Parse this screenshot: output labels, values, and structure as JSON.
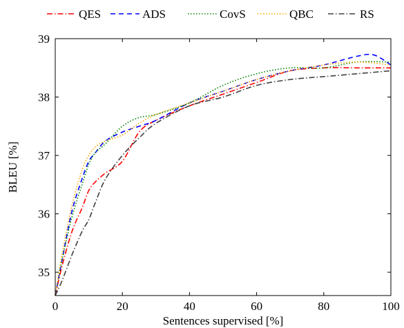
{
  "chart_data": {
    "type": "line",
    "xlabel": "Sentences supervised [%]",
    "ylabel": "BLEU [%]",
    "xlim": [
      0,
      100
    ],
    "ylim": [
      34.6,
      39.0
    ],
    "xticks": [
      0,
      20,
      40,
      60,
      80,
      100
    ],
    "yticks": [
      35,
      36,
      37,
      38,
      39
    ],
    "grid": false,
    "legend_position": "top",
    "series": [
      {
        "name": "QES",
        "color": "#ff0000",
        "dash": "dash-dot",
        "x": [
          0,
          2,
          5,
          8,
          10,
          12,
          15,
          20,
          25,
          30,
          40,
          50,
          60,
          70,
          80,
          90,
          100
        ],
        "y": [
          34.6,
          35.1,
          35.7,
          36.1,
          36.4,
          36.55,
          36.7,
          36.9,
          37.4,
          37.6,
          37.85,
          38.05,
          38.25,
          38.45,
          38.5,
          38.5,
          38.5
        ]
      },
      {
        "name": "ADS",
        "color": "#0000ff",
        "dash": "dashed",
        "x": [
          0,
          2,
          5,
          8,
          10,
          12,
          15,
          20,
          25,
          30,
          40,
          50,
          60,
          70,
          80,
          90,
          95,
          100
        ],
        "y": [
          34.6,
          35.2,
          36.05,
          36.6,
          36.9,
          37.05,
          37.25,
          37.4,
          37.5,
          37.6,
          37.9,
          38.1,
          38.3,
          38.45,
          38.55,
          38.7,
          38.72,
          38.55
        ]
      },
      {
        "name": "CovS",
        "color": "#008000",
        "dash": "dotted",
        "x": [
          0,
          2,
          5,
          8,
          10,
          12,
          15,
          20,
          25,
          30,
          40,
          50,
          60,
          70,
          80,
          90,
          100
        ],
        "y": [
          34.6,
          35.2,
          35.95,
          36.5,
          36.85,
          37.05,
          37.2,
          37.5,
          37.65,
          37.7,
          37.9,
          38.2,
          38.4,
          38.5,
          38.5,
          38.6,
          38.6
        ]
      },
      {
        "name": "QBC",
        "color": "#ffa500",
        "dash": "dotted",
        "x": [
          0,
          2,
          5,
          8,
          10,
          12,
          15,
          20,
          25,
          30,
          40,
          50,
          60,
          70,
          80,
          90,
          100
        ],
        "y": [
          34.6,
          35.3,
          36.15,
          36.75,
          37.0,
          37.15,
          37.25,
          37.35,
          37.55,
          37.7,
          37.9,
          38.1,
          38.3,
          38.45,
          38.55,
          38.6,
          38.55
        ]
      },
      {
        "name": "RS",
        "color": "#404040",
        "dash": "dash-dot",
        "x": [
          0,
          2,
          5,
          8,
          10,
          12,
          15,
          20,
          25,
          30,
          40,
          50,
          60,
          70,
          80,
          90,
          100
        ],
        "y": [
          34.6,
          34.85,
          35.3,
          35.7,
          35.9,
          36.2,
          36.6,
          37.0,
          37.3,
          37.55,
          37.85,
          38.0,
          38.2,
          38.3,
          38.35,
          38.4,
          38.45
        ]
      }
    ]
  }
}
